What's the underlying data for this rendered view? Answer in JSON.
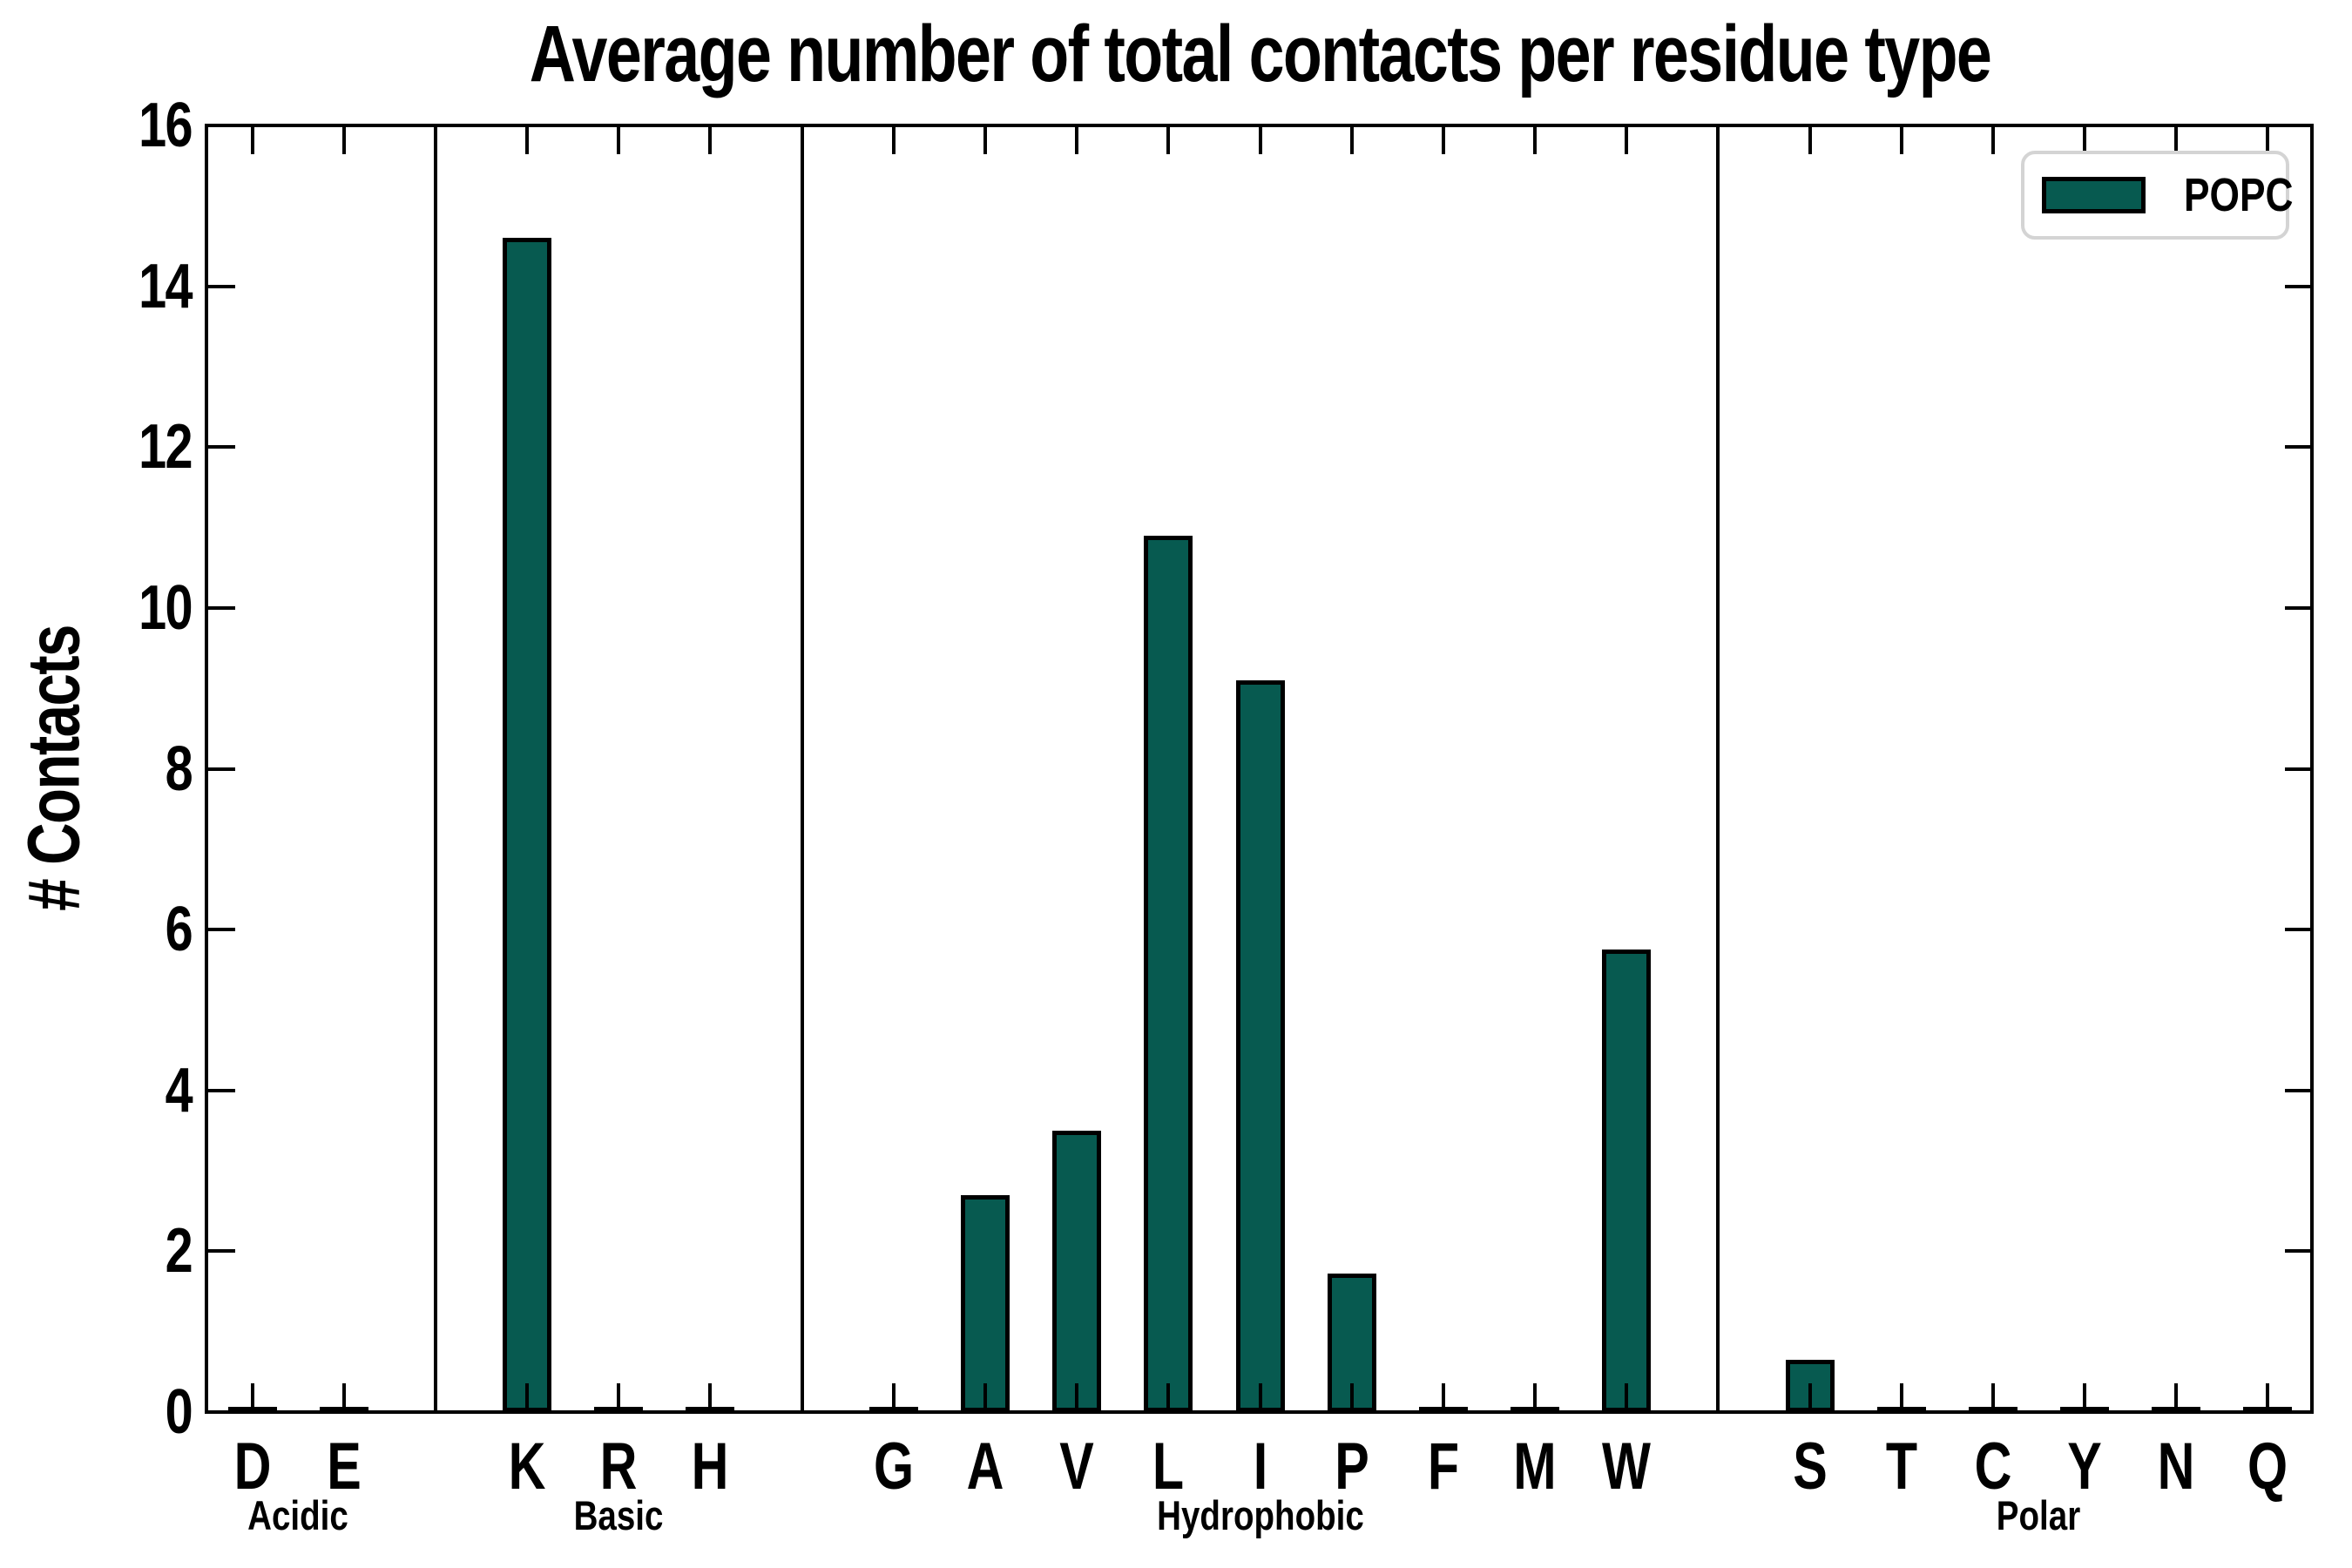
{
  "chart_data": {
    "type": "bar",
    "title": "Average number of total contacts per residue type",
    "ylabel": "# Contacts",
    "xlabel": "",
    "ylim": [
      0,
      16
    ],
    "y_ticks": [
      0,
      2,
      4,
      6,
      8,
      10,
      12,
      14,
      16
    ],
    "grid": false,
    "legend_position": "upper right",
    "legend_label": "POPC",
    "groups": [
      {
        "name": "Acidic",
        "categories": [
          "D",
          "E"
        ],
        "values": [
          0.04,
          0.04
        ]
      },
      {
        "name": "Basic",
        "categories": [
          "K",
          "R",
          "H"
        ],
        "values": [
          14.6,
          0.04,
          0.04
        ]
      },
      {
        "name": "Hydrophobic",
        "categories": [
          "G",
          "A",
          "V",
          "L",
          "I",
          "P",
          "F",
          "M",
          "W"
        ],
        "values": [
          0.04,
          2.7,
          3.5,
          10.9,
          9.1,
          1.72,
          0.04,
          0.04,
          5.75
        ]
      },
      {
        "name": "Polar",
        "categories": [
          "S",
          "T",
          "C",
          "Y",
          "N",
          "Q"
        ],
        "values": [
          0.65,
          0.04,
          0.04,
          0.04,
          0.04,
          0.04
        ]
      }
    ]
  },
  "colors": {
    "bar_fill": "#075a50",
    "bar_edge": "#000000",
    "axis": "#000000",
    "legend_border": "#d4d4d4",
    "background": "#ffffff"
  }
}
